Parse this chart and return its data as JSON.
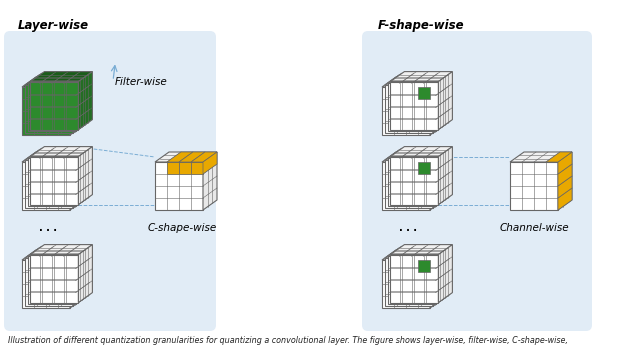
{
  "bg_color": "#dce9f5",
  "cube_face_color": "white",
  "cube_edge_color": "#666666",
  "green_color": "#2d8a2d",
  "green_dark": "#1a5c1a",
  "green_mid": "#236e23",
  "yellow_color": "#e8a800",
  "yellow_dark": "#b07800",
  "arrow_color": "#7aadd4",
  "title_fontsize": 8.5,
  "label_fontsize": 7.5,
  "caption_fontsize": 5.8,
  "caption": "Illustration of different quantization granularities for quantizing a convolutional layer. The figure shows layer-wise, filter-wise, C-shape-wise,",
  "labels": {
    "layer_wise": "Layer-wise",
    "filter_wise": "Filter-wise",
    "c_shape_wise": "C-shape-wise",
    "f_shape_wise": "F-shape-wise",
    "channel_wise": "Channel-wise"
  }
}
